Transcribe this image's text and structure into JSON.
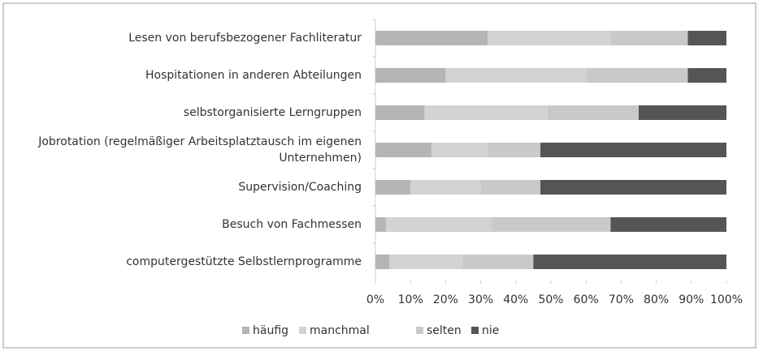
{
  "chart_data": {
    "type": "stacked-bar-horizontal",
    "categories": [
      "Lesen von berufsbezogener Fachliteratur",
      "Hospitationen in anderen Abteilungen",
      "selbstorganisierte Lerngruppen",
      "Jobrotation (regelmäßiger Arbeitsplatztausch im eigenen Unternehmen)",
      "Supervision/Coaching",
      "Besuch von Fachmessen",
      "computergestützte Selbstlernprogramme"
    ],
    "series": [
      {
        "name": "häufig",
        "color": "#b5b5b5",
        "values": [
          32,
          20,
          14,
          16,
          10,
          3,
          4
        ]
      },
      {
        "name": "manchmal",
        "color": "#d3d3d3",
        "values": [
          35,
          40,
          35,
          16,
          20,
          30,
          21
        ]
      },
      {
        "name": "selten",
        "color": "#c9c9c9",
        "values": [
          22,
          29,
          26,
          15,
          17,
          34,
          20
        ]
      },
      {
        "name": "nie",
        "color": "#555555",
        "values": [
          11,
          11,
          25,
          53,
          53,
          33,
          55
        ]
      }
    ],
    "xlim": [
      0,
      100
    ],
    "xticks": [
      {
        "value": 0,
        "label": "0%"
      },
      {
        "value": 10,
        "label": "10%"
      },
      {
        "value": 20,
        "label": "20%"
      },
      {
        "value": 30,
        "label": "30%"
      },
      {
        "value": 40,
        "label": "40%"
      },
      {
        "value": 50,
        "label": "50%"
      },
      {
        "value": 60,
        "label": "60%"
      },
      {
        "value": 70,
        "label": "70%"
      },
      {
        "value": 80,
        "label": "80%"
      },
      {
        "value": 90,
        "label": "90%"
      },
      {
        "value": 100,
        "label": "100%"
      }
    ],
    "legend": "bottom"
  }
}
